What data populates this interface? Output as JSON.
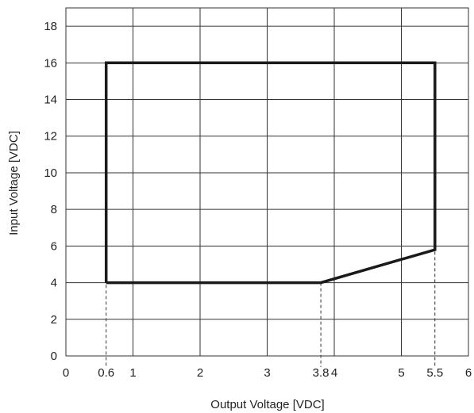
{
  "chart_data": {
    "type": "area",
    "title": "",
    "xlabel": "Output Voltage [VDC]",
    "ylabel": "Input Voltage [VDC]",
    "xlim": [
      0,
      6
    ],
    "ylim": [
      0,
      19
    ],
    "grid": true,
    "x_ticks": [
      {
        "value": 0,
        "label": "0"
      },
      {
        "value": 0.6,
        "label": "0.6"
      },
      {
        "value": 1,
        "label": "1"
      },
      {
        "value": 2,
        "label": "2"
      },
      {
        "value": 3,
        "label": "3"
      },
      {
        "value": 3.8,
        "label": "3.8"
      },
      {
        "value": 4,
        "label": "4"
      },
      {
        "value": 5,
        "label": "5"
      },
      {
        "value": 5.5,
        "label": "5.5"
      },
      {
        "value": 6,
        "label": "6"
      }
    ],
    "x_grid": [
      1,
      2,
      3,
      4,
      5,
      6
    ],
    "y_ticks": [
      0,
      2,
      4,
      6,
      8,
      10,
      12,
      14,
      16,
      18
    ],
    "region": {
      "x": [
        0.6,
        0.6,
        5.5,
        5.5,
        3.8,
        0.6
      ],
      "y": [
        4,
        16,
        16,
        5.8,
        4,
        4
      ]
    },
    "reference_lines_x": [
      0.6,
      3.8,
      5.5
    ]
  }
}
